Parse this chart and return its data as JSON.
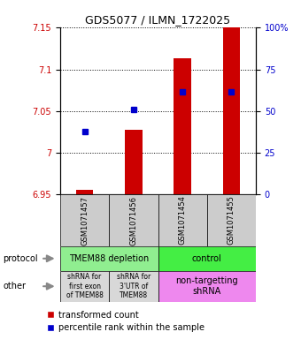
{
  "title": "GDS5077 / ILMN_1722025",
  "samples": [
    "GSM1071457",
    "GSM1071456",
    "GSM1071454",
    "GSM1071455"
  ],
  "red_values": [
    6.955,
    7.028,
    7.113,
    7.15
  ],
  "blue_values": [
    7.025,
    7.052,
    7.073,
    7.073
  ],
  "ylim_left": [
    6.95,
    7.15
  ],
  "ylim_right": [
    0,
    100
  ],
  "yticks_left": [
    6.95,
    7.0,
    7.05,
    7.1,
    7.15
  ],
  "yticks_right": [
    0,
    25,
    50,
    75,
    100
  ],
  "ytick_labels_left": [
    "6.95",
    "7",
    "7.05",
    "7.1",
    "7.15"
  ],
  "ytick_labels_right": [
    "0",
    "25",
    "50",
    "75",
    "100%"
  ],
  "bar_color": "#cc0000",
  "dot_color": "#0000cc",
  "bar_width": 0.35,
  "protocol_labels": [
    "TMEM88 depletion",
    "control"
  ],
  "protocol_color_left": "#90ee90",
  "protocol_color_right": "#44ee44",
  "other_label_0": "shRNA for\nfirst exon\nof TMEM88",
  "other_label_1": "shRNA for\n3'UTR of\nTMEM88",
  "other_label_2": "non-targetting\nshRNA",
  "other_color_gray": "#d8d8d8",
  "other_color_pink": "#ee88ee",
  "sample_box_color": "#cccccc",
  "legend_red": "transformed count",
  "legend_blue": "percentile rank within the sample",
  "protocol_arrow_label": "protocol",
  "other_arrow_label": "other",
  "title_fontsize": 9,
  "tick_fontsize": 7,
  "sample_fontsize": 6,
  "label_fontsize": 7,
  "legend_fontsize": 7
}
